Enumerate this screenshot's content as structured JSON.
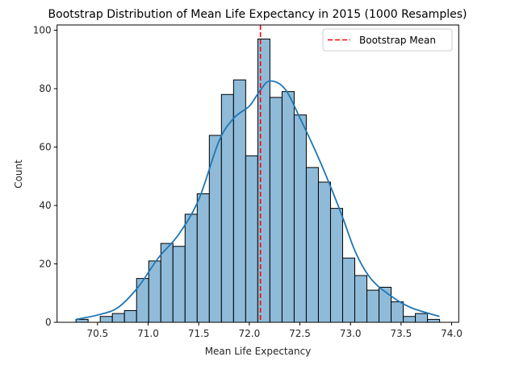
{
  "chart_data": {
    "type": "bar",
    "subtype": "histogram_with_kde",
    "title": "Bootstrap Distribution of Mean Life Expectancy in 2015 (1000 Resamples)",
    "xlabel": "Mean Life Expectancy",
    "ylabel": "Count",
    "xlim": [
      70.1,
      74.07
    ],
    "ylim": [
      0,
      101.8
    ],
    "xticks": [
      70.5,
      71.0,
      71.5,
      72.0,
      72.5,
      73.0,
      73.5,
      74.0
    ],
    "xtick_labels": [
      "70.5",
      "71.0",
      "71.5",
      "72.0",
      "72.5",
      "73.0",
      "73.5",
      "74.0"
    ],
    "yticks": [
      0,
      20,
      40,
      60,
      80,
      100
    ],
    "ytick_labels": [
      "0",
      "20",
      "40",
      "60",
      "80",
      "100"
    ],
    "grid": false,
    "bins": {
      "start": 70.287,
      "end": 73.881,
      "count": 30
    },
    "values": [
      1,
      0,
      2,
      3,
      4,
      15,
      21,
      27,
      26,
      37,
      44,
      64,
      78,
      83,
      57,
      97,
      77,
      79,
      71,
      53,
      48,
      39,
      22,
      16,
      11,
      12,
      7,
      2,
      3,
      1
    ],
    "kde": {
      "x": [
        70.29,
        70.5,
        70.7,
        70.9,
        71.1,
        71.3,
        71.5,
        71.7,
        71.85,
        72.0,
        72.1,
        72.2,
        72.35,
        72.5,
        72.7,
        72.9,
        73.05,
        73.2,
        73.4,
        73.6,
        73.88
      ],
      "y": [
        1,
        2.5,
        5,
        12,
        22,
        30,
        42,
        62,
        70,
        74,
        79,
        82.6,
        80,
        70,
        55,
        38,
        24,
        15,
        9,
        5,
        2
      ]
    },
    "reference_line": {
      "x": 72.11,
      "label": "Bootstrap Mean",
      "style": "dashed",
      "color": "#ff0000"
    },
    "legend": {
      "placement": "top-right",
      "entries": [
        "Bootstrap Mean"
      ]
    },
    "colors": {
      "bar_fill": "#8fbbd9",
      "bar_edge": "#000000",
      "kde_line": "#1f77b4",
      "mean_line": "#ff0000"
    }
  }
}
